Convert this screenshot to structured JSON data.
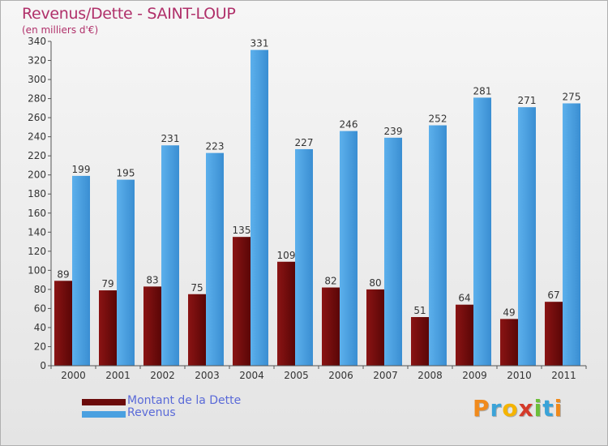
{
  "title": "Revenus/Dette - SAINT-LOUP",
  "subtitle": "(en milliers d'€)",
  "logo": {
    "letters": [
      "P",
      "r",
      "o",
      "x",
      "i",
      "t",
      "i"
    ],
    "colors": [
      "#f08a1c",
      "#3aa3d8",
      "#f5b400",
      "#d43a2a",
      "#6cbf3a",
      "#3aa3d8",
      "#f08a1c"
    ]
  },
  "legend": [
    {
      "label": "Montant de la Dette",
      "color": "#6b0a0a"
    },
    {
      "label": "Revenus",
      "color": "#4aa0e0"
    }
  ],
  "chart_data": {
    "type": "bar",
    "title": "Revenus/Dette - SAINT-LOUP",
    "ylabel": "(en milliers d'€)",
    "categories": [
      "2000",
      "2001",
      "2002",
      "2003",
      "2004",
      "2005",
      "2006",
      "2007",
      "2008",
      "2009",
      "2010",
      "2011"
    ],
    "series": [
      {
        "name": "Montant de la Dette",
        "color": "#6b0a0a",
        "values": [
          89,
          79,
          83,
          75,
          135,
          109,
          82,
          80,
          51,
          64,
          49,
          67
        ]
      },
      {
        "name": "Revenus",
        "color": "#4aa0e0",
        "values": [
          199,
          195,
          231,
          223,
          331,
          227,
          246,
          239,
          252,
          281,
          271,
          275
        ]
      }
    ],
    "ylim": [
      0,
      340
    ],
    "ytick_step": 20,
    "grid": false,
    "legend_position": "bottom-left"
  }
}
